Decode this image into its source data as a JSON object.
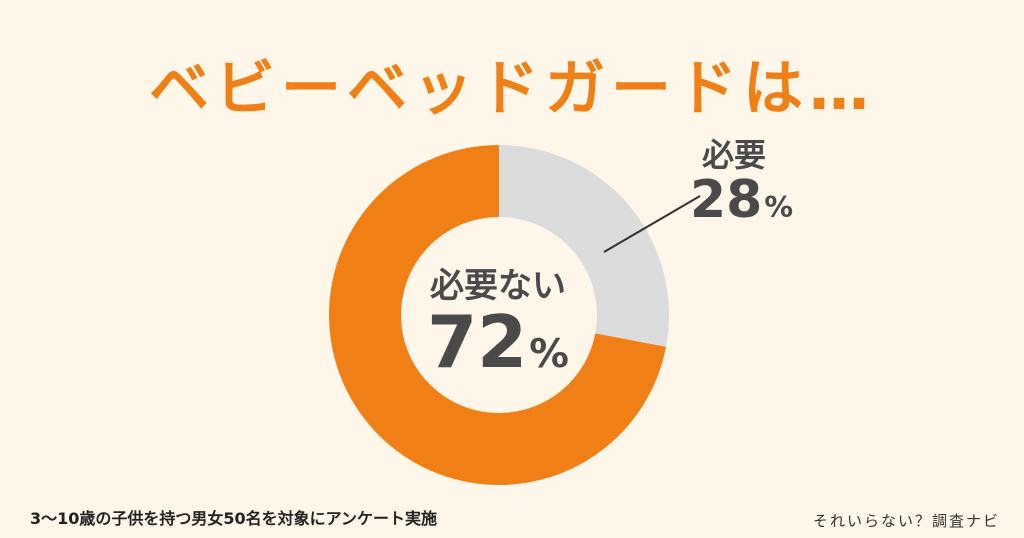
{
  "title": "ベビーベッドガードは…",
  "chart_data": {
    "type": "pie",
    "donut": true,
    "categories": [
      "必要ない",
      "必要"
    ],
    "values": [
      72,
      28
    ],
    "colors": [
      "#f07f16",
      "#dcdcdc"
    ],
    "unit": "%"
  },
  "labels": {
    "center_label": "必要ない",
    "center_value": "72",
    "slice_label": "必要",
    "slice_value": "28",
    "percent": "%"
  },
  "footnote": "3〜10歳の子供を持つ男女50名を対象にアンケート実施",
  "brand": "それいらない？調査ナビ"
}
